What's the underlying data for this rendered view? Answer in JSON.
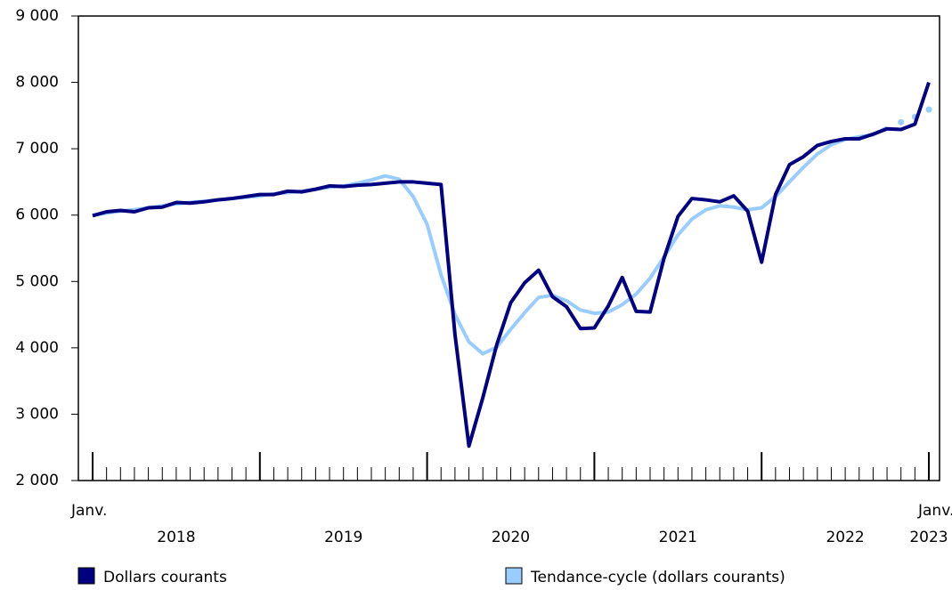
{
  "chart_data": {
    "type": "line",
    "categories": [
      "Janv.",
      null,
      null,
      null,
      null,
      null,
      null,
      null,
      null,
      null,
      null,
      null,
      null,
      null,
      null,
      null,
      null,
      null,
      null,
      null,
      null,
      null,
      null,
      null,
      null,
      null,
      null,
      null,
      null,
      null,
      null,
      null,
      null,
      null,
      null,
      null,
      null,
      null,
      null,
      null,
      null,
      null,
      null,
      null,
      null,
      null,
      null,
      null,
      null,
      null,
      null,
      null,
      null,
      null,
      null,
      null,
      null,
      null,
      null,
      null,
      "Janv."
    ],
    "year_labels": [
      "2018",
      "2019",
      "2020",
      "2021",
      "2022",
      "2023"
    ],
    "series": [
      {
        "name": "Dollars courants",
        "color": "#000080",
        "values": [
          5990,
          6050,
          6070,
          6050,
          6110,
          6120,
          6190,
          6180,
          6200,
          6230,
          6250,
          6280,
          6310,
          6310,
          6360,
          6350,
          6390,
          6440,
          6430,
          6450,
          6460,
          6480,
          6500,
          6500,
          6480,
          6460,
          4200,
          2520,
          3250,
          4050,
          4680,
          4980,
          5170,
          4770,
          4620,
          4290,
          4300,
          4630,
          5060,
          4550,
          4540,
          5350,
          5980,
          6250,
          6230,
          6200,
          6290,
          6060,
          5290,
          6310,
          6760,
          6880,
          7050,
          7110,
          7150,
          7150,
          7220,
          7300,
          7290,
          7370,
          8000
        ]
      },
      {
        "name": "Tendance-cycle (dollars courants)",
        "color": "#99ccff",
        "provisional_from": 57,
        "values": [
          6000,
          6030,
          6060,
          6080,
          6110,
          6140,
          6170,
          6190,
          6210,
          6230,
          6250,
          6270,
          6290,
          6320,
          6340,
          6360,
          6390,
          6420,
          6440,
          6480,
          6530,
          6590,
          6540,
          6280,
          5860,
          5100,
          4500,
          4090,
          3910,
          4010,
          4280,
          4530,
          4760,
          4790,
          4710,
          4570,
          4520,
          4540,
          4650,
          4810,
          5050,
          5370,
          5700,
          5940,
          6080,
          6140,
          6120,
          6080,
          6110,
          6280,
          6500,
          6720,
          6920,
          7060,
          7140,
          7180,
          7210,
          7320,
          7400,
          7480,
          7590
        ]
      }
    ],
    "ylim": [
      2000,
      9000
    ],
    "yticks": [
      {
        "value": 2000,
        "label": "2 000"
      },
      {
        "value": 3000,
        "label": "3 000"
      },
      {
        "value": 4000,
        "label": "4 000"
      },
      {
        "value": 5000,
        "label": "5 000"
      },
      {
        "value": 6000,
        "label": "6 000"
      },
      {
        "value": 7000,
        "label": "7 000"
      },
      {
        "value": 8000,
        "label": "8 000"
      },
      {
        "value": 9000,
        "label": "9 000"
      }
    ]
  }
}
